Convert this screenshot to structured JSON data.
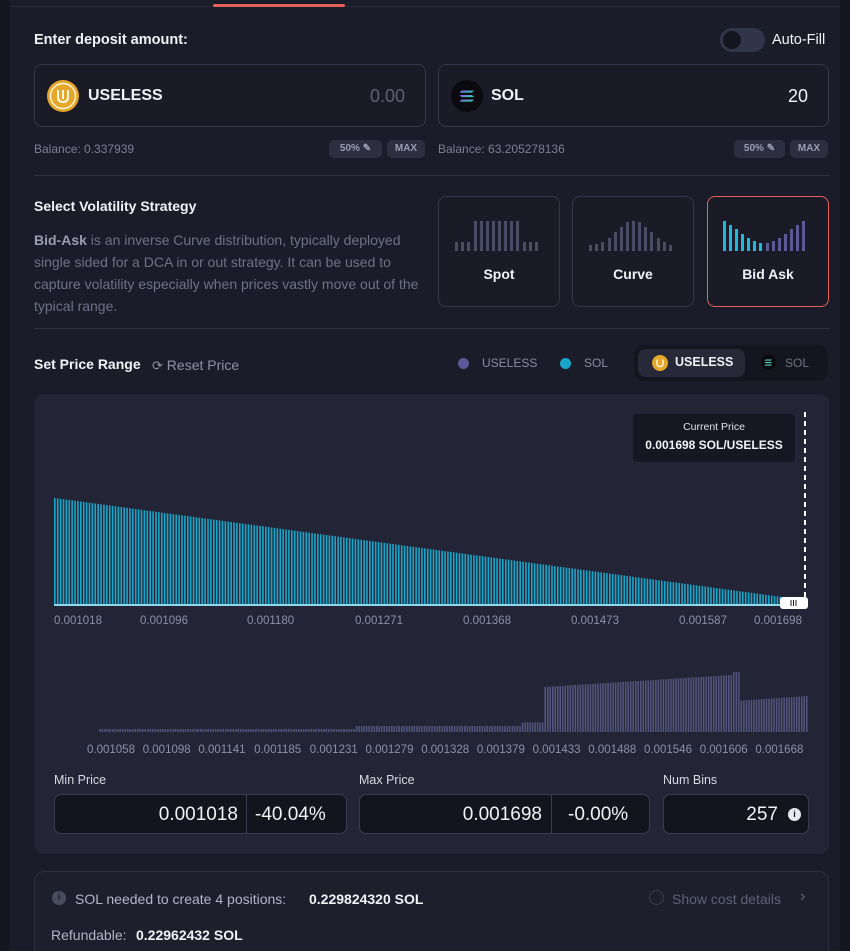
{
  "deposit": {
    "title": "Enter deposit amount:",
    "autofill_label": "Auto-Fill",
    "token_a": {
      "symbol": "USELESS",
      "amount": "0.00",
      "balance": "Balance: 0.337939",
      "half_label": "50%",
      "max_label": "MAX"
    },
    "token_b": {
      "symbol": "SOL",
      "amount": "20",
      "balance": "Balance: 63.205278136",
      "half_label": "50%",
      "max_label": "MAX"
    }
  },
  "strategy": {
    "title": "Select Volatility Strategy",
    "description_bold": "Bid-Ask",
    "description_rest": " is an inverse Curve distribution, typically deployed single sided for a DCA in or out strategy. It can be used to capture volatility especially when prices vastly move out of the typical range.",
    "options": [
      {
        "label": "Spot",
        "selected": false
      },
      {
        "label": "Curve",
        "selected": false
      },
      {
        "label": "Bid Ask",
        "selected": true
      }
    ]
  },
  "price_range": {
    "title": "Set Price Range",
    "reset_label": "Reset Price",
    "legend": [
      {
        "label": "USELESS",
        "color": "#5a5a96"
      },
      {
        "label": "SOL",
        "color": "#1aa6c9"
      }
    ],
    "segment": {
      "active": "USELESS",
      "inactive": "SOL"
    },
    "current_price_title": "Current Price",
    "current_price_value": "0.001698 SOL/USELESS",
    "colors": {
      "bars": "#1aa6c9",
      "liquidity": "#55557e",
      "accent": "#e5605a"
    }
  },
  "chart_data": [
    {
      "type": "bar",
      "x_ticks": [
        "0.001018",
        "0.001096",
        "0.001180",
        "0.001271",
        "0.001368",
        "0.001473",
        "0.001587",
        "0.001698"
      ],
      "series": [
        {
          "name": "SOL",
          "shape": "linear descending",
          "start_value": 1.0,
          "end_value": 0.05,
          "bar_count": 257
        }
      ],
      "current_price": 0.001698
    },
    {
      "type": "bar",
      "x_ticks": [
        "0.001058",
        "0.001098",
        "0.001141",
        "0.001185",
        "0.001231",
        "0.001279",
        "0.001328",
        "0.001379",
        "0.001433",
        "0.001488",
        "0.001546",
        "0.001606",
        "0.001668"
      ],
      "series": [
        {
          "name": "USELESS",
          "segments": [
            {
              "from": 0.0,
              "to": 0.06,
              "value": 0.0
            },
            {
              "from": 0.06,
              "to": 0.4,
              "value": 0.05
            },
            {
              "from": 0.4,
              "to": 0.62,
              "value": 0.1
            },
            {
              "from": 0.62,
              "to": 0.65,
              "value": 0.16
            },
            {
              "from": 0.65,
              "to": 0.9,
              "value": 0.75
            },
            {
              "from": 0.9,
              "to": 0.91,
              "value": 1.0
            },
            {
              "from": 0.91,
              "to": 1.0,
              "value": 0.52
            }
          ]
        }
      ]
    }
  ],
  "inputs": {
    "min_price_label": "Min Price",
    "min_price": "0.001018",
    "min_pct": "-40.04%",
    "max_price_label": "Max Price",
    "max_price": "0.001698",
    "max_pct": "-0.00%",
    "num_bins_label": "Num Bins",
    "num_bins": "257"
  },
  "cost": {
    "needed_label": "SOL needed to create 4 positions:",
    "needed_value": "0.229824320 SOL",
    "details_label": "Show cost details",
    "refundable_label": "Refundable:",
    "refundable_value": "0.22962432 SOL"
  }
}
